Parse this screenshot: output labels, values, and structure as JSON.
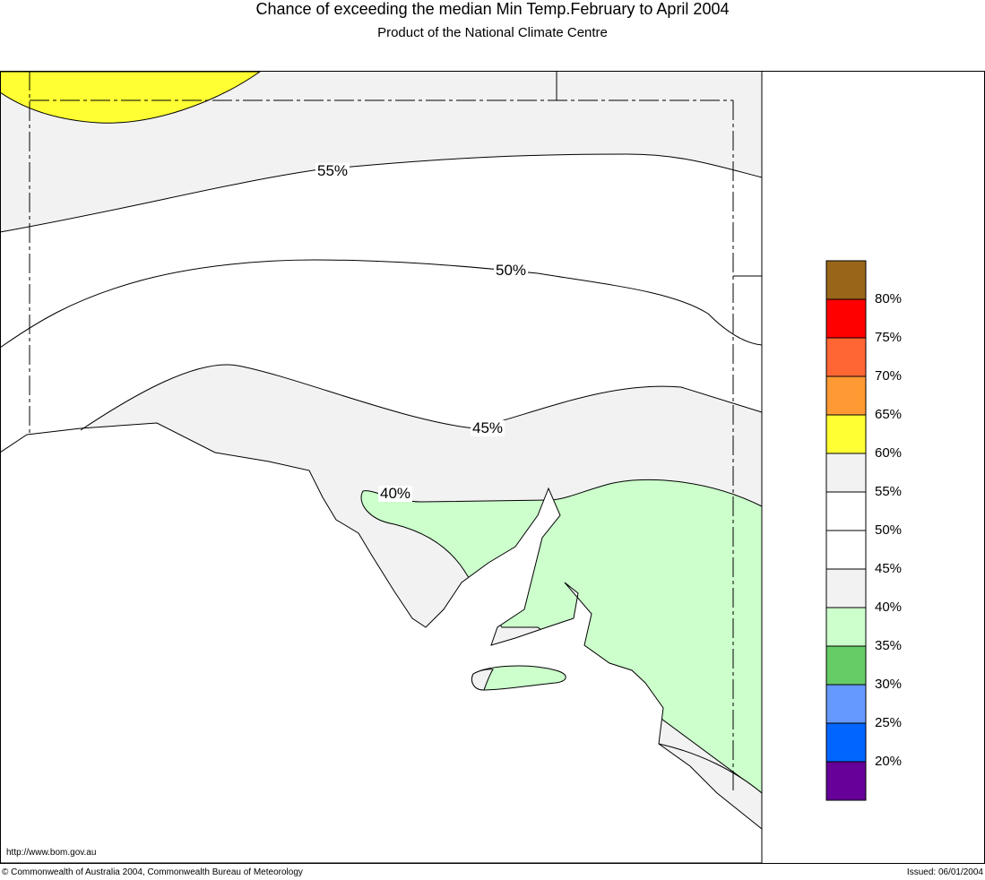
{
  "title": "Chance of exceeding the median Min Temp.February to April 2004",
  "subtitle": "Product of the National Climate Centre",
  "contour_labels": [
    "55%",
    "50%",
    "45%",
    "40%"
  ],
  "legend": {
    "colors": [
      "#996619",
      "#ff0000",
      "#ff6633",
      "#ff9933",
      "#ffff33",
      "#f2f2f2",
      "#ffffff",
      "#ffffff",
      "#f2f2f2",
      "#ccffcc",
      "#66cc66",
      "#6699ff",
      "#0066ff",
      "#660099"
    ],
    "labels": [
      "80%",
      "75%",
      "70%",
      "65%",
      "60%",
      "55%",
      "50%",
      "45%",
      "40%",
      "35%",
      "30%",
      "25%",
      "20%"
    ]
  },
  "map_colors": {
    "grey": "#f2f2f2",
    "yellow": "#ffff33",
    "green": "#ccffcc"
  },
  "footer": {
    "url": "http://www.bom.gov.au",
    "copyright": "© Commonwealth of Australia 2004, Commonwealth Bureau of Meteorology",
    "issued": "Issued: 06/01/2004"
  }
}
